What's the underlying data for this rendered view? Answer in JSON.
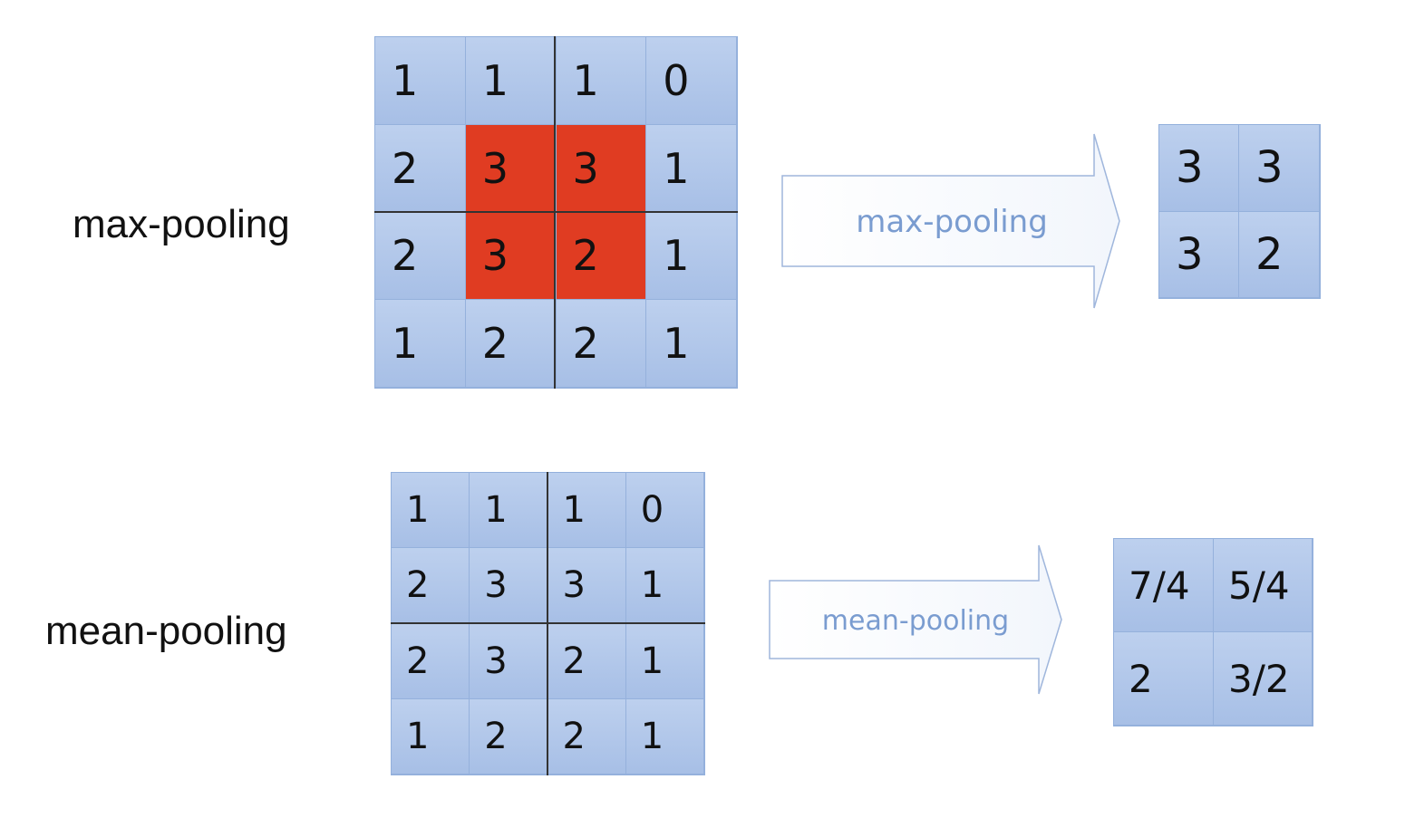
{
  "max_pooling": {
    "label": "max-pooling",
    "arrow_label": "max-pooling",
    "input": [
      [
        "1",
        "1",
        "1",
        "0"
      ],
      [
        "2",
        "3",
        "3",
        "1"
      ],
      [
        "2",
        "3",
        "2",
        "1"
      ],
      [
        "1",
        "2",
        "2",
        "1"
      ]
    ],
    "highlighted_cells": [
      [
        1,
        1
      ],
      [
        1,
        2
      ],
      [
        2,
        1
      ],
      [
        2,
        2
      ]
    ],
    "output": [
      [
        "3",
        "3"
      ],
      [
        "3",
        "2"
      ]
    ]
  },
  "mean_pooling": {
    "label": "mean-pooling",
    "arrow_label": "mean-pooling",
    "input": [
      [
        "1",
        "1",
        "1",
        "0"
      ],
      [
        "2",
        "3",
        "3",
        "1"
      ],
      [
        "2",
        "3",
        "2",
        "1"
      ],
      [
        "1",
        "2",
        "2",
        "1"
      ]
    ],
    "output": [
      [
        "7/4",
        "5/4"
      ],
      [
        "2",
        "3/2"
      ]
    ]
  },
  "colors": {
    "cell": "#b3c9ec",
    "highlight": "#e03c22",
    "arrow_text": "#7a9cd0"
  }
}
